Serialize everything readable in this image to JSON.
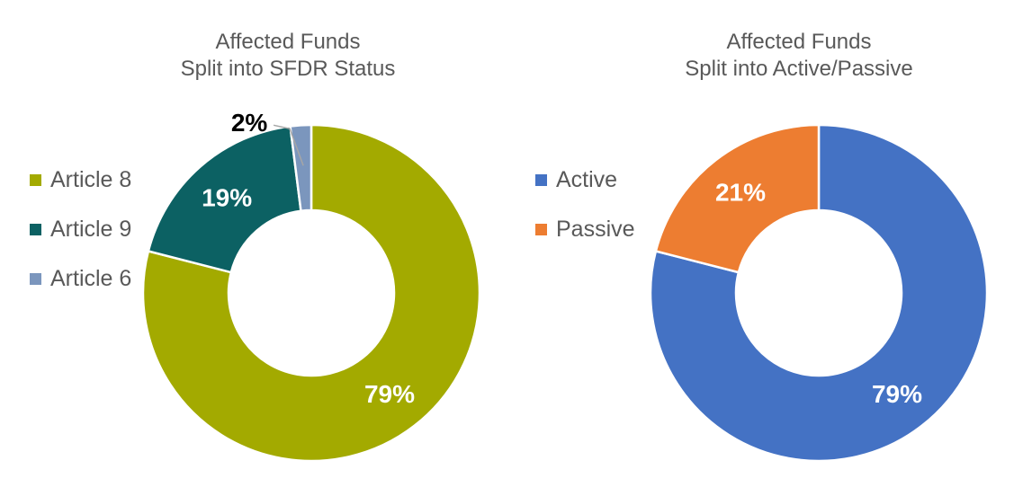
{
  "styles": {
    "background": "#FFFFFF",
    "title_color": "#595959",
    "legend_text_color": "#595959",
    "slice_border_color": "#FFFFFF",
    "leader_line_color": "#A6A6A6"
  },
  "chart_data": [
    {
      "type": "pie",
      "subtype": "donut",
      "title": "Affected Funds Split into SFDR Status",
      "title_lines": [
        "Affected Funds",
        "Split into SFDR Status"
      ],
      "legend_position": "left",
      "legend_entries": [
        "Article 8",
        "Article 9",
        "Article 6"
      ],
      "start_angle_deg": 0,
      "direction": "clockwise",
      "donut_hole_ratio": 0.49,
      "segments": [
        {
          "label": "Article 8",
          "value": 79,
          "display": "79%",
          "color": "#A3AA00",
          "label_color": "#FFFFFF",
          "callout": false
        },
        {
          "label": "Article 9",
          "value": 19,
          "display": "19%",
          "color": "#0C6163",
          "label_color": "#FFFFFF",
          "callout": false
        },
        {
          "label": "Article 6",
          "value": 2,
          "display": "2%",
          "color": "#7B96BD",
          "label_color": "#000000",
          "callout": true
        }
      ]
    },
    {
      "type": "pie",
      "subtype": "donut",
      "title": "Affected Funds Split into Active/Passive",
      "title_lines": [
        "Affected Funds",
        "Split into Active/Passive"
      ],
      "legend_position": "left",
      "legend_entries": [
        "Active",
        "Passive"
      ],
      "start_angle_deg": 0,
      "direction": "clockwise",
      "donut_hole_ratio": 0.49,
      "segments": [
        {
          "label": "Active",
          "value": 79,
          "display": "79%",
          "color": "#4472C4",
          "label_color": "#FFFFFF",
          "callout": false
        },
        {
          "label": "Passive",
          "value": 21,
          "display": "21%",
          "color": "#ED7D31",
          "label_color": "#FFFFFF",
          "callout": false
        }
      ]
    }
  ]
}
